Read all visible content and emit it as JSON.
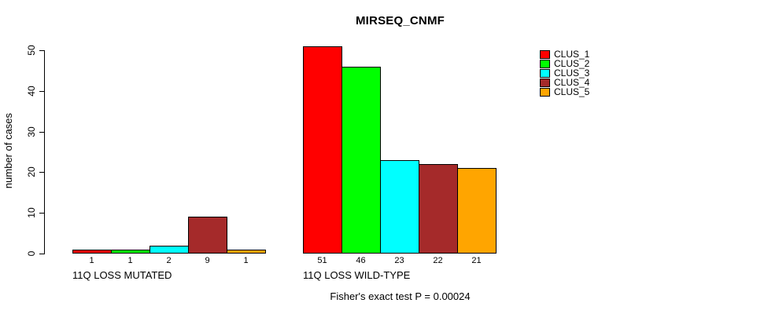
{
  "chart_data": {
    "type": "bar",
    "title": "MIRSEQ_CNMF",
    "ylabel": "number of cases",
    "ylim": [
      0,
      50
    ],
    "yticks": [
      0,
      10,
      20,
      30,
      40,
      50
    ],
    "grid": false,
    "legend_position": "top-right-inside",
    "categories": [
      "11Q LOSS MUTATED",
      "11Q LOSS WILD-TYPE"
    ],
    "series": [
      {
        "name": "CLUS_1",
        "color": "#FF0000",
        "values": [
          1,
          51
        ]
      },
      {
        "name": "CLUS_2",
        "color": "#00FF00",
        "values": [
          1,
          46
        ]
      },
      {
        "name": "CLUS_3",
        "color": "#00FFFF",
        "values": [
          2,
          23
        ]
      },
      {
        "name": "CLUS_4",
        "color": "#A52A2A",
        "values": [
          9,
          22
        ]
      },
      {
        "name": "CLUS_5",
        "color": "#FFA500",
        "values": [
          1,
          21
        ]
      }
    ],
    "bar_value_labels": true,
    "annotation": "Fisher's exact test P = 0.00024"
  }
}
